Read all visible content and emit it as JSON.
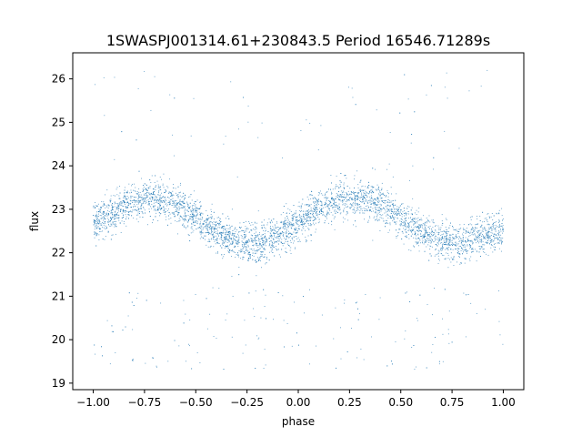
{
  "chart_data": {
    "type": "scatter",
    "title": "1SWASPJ001314.61+230843.5 Period 16546.71289s",
    "xlabel": "phase",
    "ylabel": "flux",
    "xlim": [
      -1.1,
      1.1
    ],
    "ylim": [
      18.85,
      26.6
    ],
    "xticks": [
      -1.0,
      -0.75,
      -0.5,
      -0.25,
      0.0,
      0.25,
      0.5,
      0.75,
      1.0
    ],
    "xtick_labels": [
      "−1.00",
      "−0.75",
      "−0.50",
      "−0.25",
      "0.00",
      "0.25",
      "0.50",
      "0.75",
      "1.00"
    ],
    "yticks": [
      19,
      20,
      21,
      22,
      23,
      24,
      25,
      26
    ],
    "ytick_labels": [
      "19",
      "20",
      "21",
      "22",
      "23",
      "24",
      "25",
      "26"
    ],
    "grid": false,
    "point_color": "#1f77b4",
    "series": [
      {
        "x_range": [
          -1.0,
          1.0
        ],
        "period_in_phase": 1.0,
        "mean_flux": 22.75,
        "amplitude": 0.5,
        "peak_phase": -0.7,
        "trough_phase": -0.2,
        "scatter_sigma": 0.22,
        "x": [
          -1.0,
          -0.95,
          -0.9,
          -0.85,
          -0.8,
          -0.75,
          -0.7,
          -0.65,
          -0.6,
          -0.55,
          -0.5,
          -0.45,
          -0.4,
          -0.35,
          -0.3,
          -0.25,
          -0.2,
          -0.15,
          -0.1,
          -0.05,
          0.0,
          0.05,
          0.1,
          0.15,
          0.2,
          0.25,
          0.3,
          0.35,
          0.4,
          0.45,
          0.5,
          0.55,
          0.6,
          0.65,
          0.7,
          0.75,
          0.8,
          0.85,
          0.9,
          0.95,
          1.0
        ],
        "y": [
          22.7,
          22.8,
          22.9,
          23.05,
          23.15,
          23.22,
          23.25,
          23.22,
          23.1,
          22.95,
          22.8,
          22.62,
          22.45,
          22.32,
          22.25,
          22.22,
          22.22,
          22.28,
          22.4,
          22.55,
          22.7,
          22.85,
          22.98,
          23.1,
          23.2,
          23.25,
          23.25,
          23.2,
          23.08,
          22.95,
          22.78,
          22.62,
          22.48,
          22.35,
          22.27,
          22.22,
          22.22,
          22.28,
          22.38,
          22.45,
          22.5
        ]
      }
    ]
  }
}
